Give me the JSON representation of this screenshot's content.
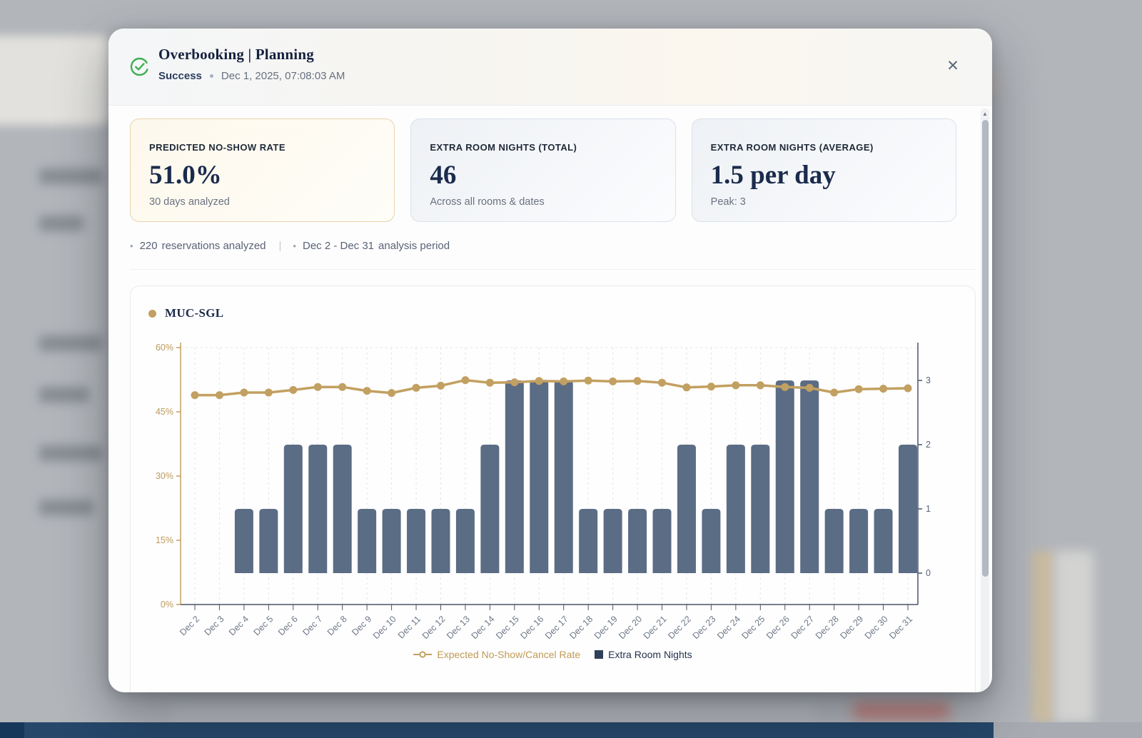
{
  "colors": {
    "accent_gold": "#c2a061",
    "bar_slate": "#5b6c85",
    "success_green": "#3fae52",
    "navy_text": "#1b2b4d"
  },
  "modal": {
    "header": {
      "title": "Overbooking | Planning",
      "status": "Success",
      "timestamp": "Dec 1, 2025, 07:08:03 AM",
      "close_glyph": "✕"
    },
    "stats": [
      {
        "label": "PREDICTED NO-SHOW RATE",
        "value": "51.0%",
        "sub": "30 days analyzed"
      },
      {
        "label": "EXTRA ROOM NIGHTS (TOTAL)",
        "value": "46",
        "sub": "Across all rooms & dates"
      },
      {
        "label": "EXTRA ROOM NIGHTS (AVERAGE)",
        "value": "1.5 per day",
        "sub": "Peak: 3"
      }
    ],
    "meta": {
      "bullet": "•",
      "reservations_count": "220",
      "reservations_label": "reservations analyzed",
      "separator": "|",
      "period_value": "Dec 2 - Dec 31",
      "period_label": "analysis period"
    }
  },
  "chart_data": {
    "type": "combo-bar-line",
    "series_title": "MUC-SGL",
    "categories": [
      "Dec 2",
      "Dec 3",
      "Dec 4",
      "Dec 5",
      "Dec 6",
      "Dec 7",
      "Dec 8",
      "Dec 9",
      "Dec 10",
      "Dec 11",
      "Dec 12",
      "Dec 13",
      "Dec 14",
      "Dec 15",
      "Dec 16",
      "Dec 17",
      "Dec 18",
      "Dec 19",
      "Dec 20",
      "Dec 21",
      "Dec 22",
      "Dec 23",
      "Dec 24",
      "Dec 25",
      "Dec 26",
      "Dec 27",
      "Dec 28",
      "Dec 29",
      "Dec 30",
      "Dec 31"
    ],
    "series": [
      {
        "name": "Expected No-Show/Cancel Rate",
        "type": "line",
        "axis": "left",
        "unit": "%",
        "color": "#c2a061",
        "values": [
          48.9,
          48.9,
          49.5,
          49.5,
          50.1,
          50.8,
          50.8,
          49.9,
          49.4,
          50.6,
          51.1,
          52.4,
          51.8,
          51.9,
          52.2,
          52.1,
          52.3,
          52.1,
          52.2,
          51.8,
          50.7,
          50.9,
          51.2,
          51.2,
          50.8,
          50.6,
          49.5,
          50.3,
          50.4,
          50.5
        ]
      },
      {
        "name": "Extra Room Nights",
        "type": "bar",
        "axis": "right",
        "color": "#5b6c85",
        "values": [
          0,
          0,
          1,
          1,
          2,
          2,
          2,
          1,
          1,
          1,
          1,
          1,
          2,
          3,
          3,
          3,
          1,
          1,
          1,
          1,
          2,
          1,
          2,
          2,
          3,
          3,
          1,
          1,
          1,
          2
        ]
      }
    ],
    "left_axis": {
      "tick_values": [
        0,
        15,
        30,
        45,
        60
      ],
      "suffix": "%",
      "min": 0,
      "max": 60,
      "color": "#c2a061"
    },
    "right_axis": {
      "tick_values": [
        0,
        1,
        2,
        3
      ],
      "min": 0,
      "max": 3,
      "color": "#4a5568"
    },
    "legend_position": "bottom",
    "grid": "vertical-dashed"
  }
}
